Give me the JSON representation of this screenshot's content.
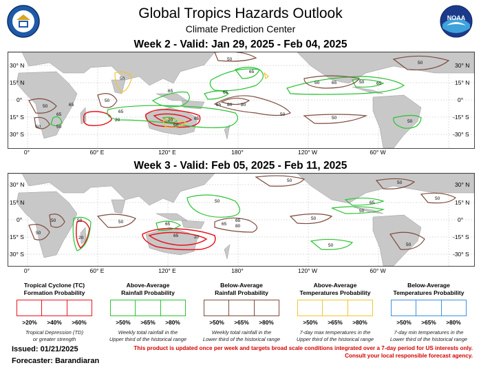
{
  "header": {
    "title": "Global Tropics Hazards Outlook",
    "subtitle": "Climate Prediction Center",
    "left_logo": "commerce-seal-icon",
    "right_logo": "noaa-logo-icon",
    "right_logo_text": "NOAA"
  },
  "week2": {
    "title": "Week 2 - Valid: Jan 29, 2025 - Feb 04, 2025"
  },
  "week3": {
    "title": "Week 3 - Valid: Feb 05, 2025 - Feb 11, 2025"
  },
  "axes": {
    "lat_left": [
      "30° N",
      "15° N",
      "0°",
      "15° S",
      "30° S"
    ],
    "lat_right": [
      "30° N",
      "15° N",
      "0°",
      "-15° S",
      "-30° S"
    ],
    "lon": [
      "0°",
      "60° E",
      "120° E",
      "180°",
      "120° W",
      "60° W"
    ]
  },
  "contour_labels": {
    "week2": [
      "50",
      "50",
      "65",
      "65",
      "65",
      "50",
      "50",
      "65",
      "65",
      "80",
      "50",
      "50",
      "65",
      "50",
      "80",
      "65",
      "20",
      "50",
      "50",
      "65",
      "20",
      "50",
      "65",
      "50",
      "50",
      "50",
      "65"
    ],
    "week3": [
      "50",
      "50",
      "50",
      "65",
      "50",
      "50",
      "20",
      "65",
      "65",
      "80",
      "50",
      "65",
      "65",
      "20",
      "50",
      "50",
      "50",
      "50",
      "50",
      "50"
    ]
  },
  "legend": [
    {
      "title_lines": [
        "Tropical Cyclone (TC)",
        "Formation Probability"
      ],
      "color": "#e8141c",
      "values": [
        ">20%",
        ">40%",
        ">60%"
      ],
      "note_lines": [
        "Tropical Depression (TD)",
        "or greater strength"
      ]
    },
    {
      "title_lines": [
        "Above-Average",
        "Rainfall Probability"
      ],
      "color": "#29c232",
      "values": [
        ">50%",
        ">65%",
        ">80%"
      ],
      "note_lines": [
        "Weekly total rainfall in the",
        "Upper third of the historical range"
      ]
    },
    {
      "title_lines": [
        "Below-Average",
        "Rainfall Probability"
      ],
      "color": "#7d4a3c",
      "values": [
        ">50%",
        ">65%",
        ">80%"
      ],
      "note_lines": [
        "Weekly total rainfall in the",
        "Lower third of the historical range"
      ]
    },
    {
      "title_lines": [
        "Above-Average",
        "Temperatures Probability"
      ],
      "color": "#f2c432",
      "values": [
        ">50%",
        ">65%",
        ">80%"
      ],
      "note_lines": [
        "7-day max temperatures in the",
        "Upper third of the historical range"
      ]
    },
    {
      "title_lines": [
        "Below-Average",
        "Temperatures Probability"
      ],
      "color": "#3d8fe0",
      "values": [
        ">50%",
        ">65%",
        ">80%"
      ],
      "note_lines": [
        "7-day min temperatures in the",
        "Lower third of the historical range"
      ]
    }
  ],
  "footer": {
    "issued": "Issued: 01/21/2025",
    "forecaster": "Forecaster: Barandiaran",
    "notice_line1": "This product is updated once per week and targets broad scale conditions integrated over a 7-day period for US interests only.",
    "notice_line2": "Consult your local responsible forecast agency."
  },
  "colors": {
    "land": "#c8c8c8",
    "ocean": "#ffffff",
    "tc": "#e8141c",
    "rain_above": "#29c232",
    "rain_below": "#7d4a3c",
    "temp_above": "#f2c432",
    "temp_below": "#3d8fe0",
    "notice": "#d40000"
  }
}
